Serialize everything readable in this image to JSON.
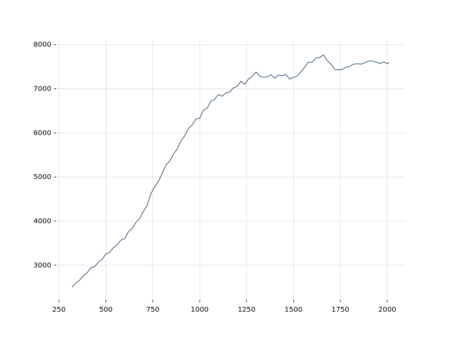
{
  "chart_data": {
    "type": "line",
    "x": [
      320,
      340,
      360,
      380,
      400,
      420,
      440,
      460,
      480,
      500,
      520,
      540,
      560,
      580,
      600,
      620,
      640,
      660,
      680,
      700,
      720,
      740,
      760,
      780,
      800,
      820,
      840,
      860,
      880,
      900,
      920,
      940,
      960,
      980,
      1000,
      1020,
      1040,
      1060,
      1080,
      1100,
      1120,
      1140,
      1160,
      1180,
      1200,
      1220,
      1240,
      1260,
      1280,
      1300,
      1320,
      1340,
      1360,
      1380,
      1400,
      1420,
      1440,
      1460,
      1480,
      1500,
      1520,
      1540,
      1560,
      1580,
      1600,
      1620,
      1640,
      1660,
      1680,
      1700,
      1720,
      1740,
      1760,
      1780,
      1800,
      1820,
      1840,
      1860,
      1880,
      1900,
      1920,
      1940,
      1960,
      1980,
      2000,
      2010
    ],
    "series": [
      {
        "color": "#34506f",
        "values": [
          2500,
          2600,
          2660,
          2760,
          2830,
          2940,
          2970,
          3070,
          3130,
          3260,
          3290,
          3400,
          3460,
          3570,
          3600,
          3760,
          3830,
          3970,
          4060,
          4220,
          4360,
          4620,
          4780,
          4900,
          5080,
          5270,
          5360,
          5520,
          5630,
          5820,
          5930,
          6100,
          6180,
          6320,
          6330,
          6520,
          6560,
          6720,
          6760,
          6870,
          6830,
          6910,
          6930,
          7020,
          7060,
          7170,
          7100,
          7220,
          7280,
          7380,
          7290,
          7260,
          7270,
          7320,
          7240,
          7310,
          7300,
          7320,
          7220,
          7260,
          7290,
          7390,
          7490,
          7610,
          7600,
          7700,
          7710,
          7770,
          7640,
          7560,
          7440,
          7430,
          7440,
          7490,
          7510,
          7560,
          7570,
          7560,
          7590,
          7630,
          7630,
          7610,
          7570,
          7610,
          7570,
          7600
        ]
      }
    ],
    "xlim": [
      235.5,
      2094.5
    ],
    "ylim": [
      2213,
      8097
    ],
    "xticks": [
      250,
      500,
      750,
      1000,
      1250,
      1500,
      1750,
      2000
    ],
    "yticks": [
      3000,
      4000,
      5000,
      6000,
      7000,
      8000
    ],
    "grid": true
  }
}
